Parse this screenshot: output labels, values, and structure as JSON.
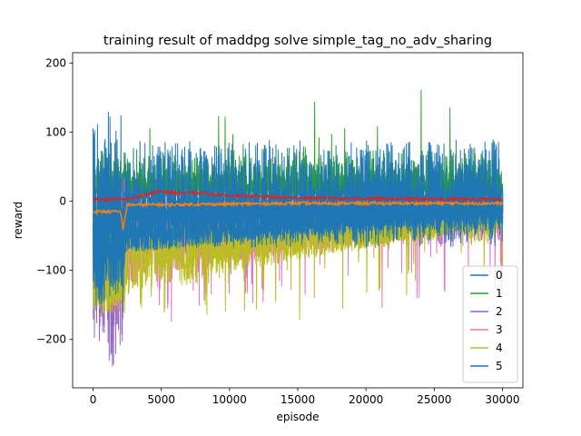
{
  "chart_data": {
    "type": "line",
    "title": "training result of maddpg solve simple_tag_no_adv_sharing",
    "xlabel": "episode",
    "ylabel": "reward",
    "xlim": [
      -1500,
      31500
    ],
    "ylim": [
      -270,
      215
    ],
    "xticks": [
      0,
      5000,
      10000,
      15000,
      20000,
      25000,
      30000
    ],
    "yticks": [
      -200,
      -100,
      0,
      100,
      200
    ],
    "grid": false,
    "legend_position": "bottom-right",
    "episodes_total": 30000,
    "series": [
      {
        "name": "0",
        "color": "#1f77b4",
        "band": {
          "low_early": -150,
          "low_late": -60,
          "high": 80,
          "mid_early": -30,
          "mid_late": -10
        }
      },
      {
        "name": "1",
        "color": "#2ca02c",
        "band": {
          "low": -5,
          "high": 185,
          "mid_early": 20,
          "mid_late": 15
        }
      },
      {
        "name": "2",
        "color": "#9467bd",
        "band": {
          "low_early": -245,
          "low_late": -60,
          "high": 5,
          "mid_early": -100,
          "mid_late": -20
        }
      },
      {
        "name": "3",
        "color": "#e377c2",
        "band": {
          "low_early": -175,
          "low_late": -180,
          "high": 5,
          "mid_early": -120,
          "mid_late": -25
        }
      },
      {
        "name": "4",
        "color": "#bcbd22",
        "band": {
          "low_early": -175,
          "low_late": -195,
          "high": 5,
          "mid_early": -140,
          "mid_late": -30
        }
      },
      {
        "name": "5",
        "color": "#1f77b4",
        "band": {
          "low_early": -165,
          "low_late": -70,
          "high": 20,
          "mid_early": -80,
          "mid_late": -15
        }
      }
    ],
    "mean_lines": [
      {
        "series": "red-mean",
        "color": "#d62728",
        "points": [
          [
            0,
            3
          ],
          [
            2000,
            3
          ],
          [
            3000,
            5
          ],
          [
            5000,
            15
          ],
          [
            6000,
            12
          ],
          [
            8000,
            12
          ],
          [
            10000,
            8
          ],
          [
            15000,
            5
          ],
          [
            20000,
            4
          ],
          [
            25000,
            3
          ],
          [
            30000,
            3
          ]
        ]
      },
      {
        "series": "orange-mean",
        "color": "#ff7f0e",
        "points": [
          [
            0,
            -15
          ],
          [
            2000,
            -15
          ],
          [
            2200,
            -40
          ],
          [
            2500,
            -5
          ],
          [
            5000,
            -5
          ],
          [
            10000,
            -4
          ],
          [
            15000,
            -3
          ],
          [
            20000,
            -3
          ],
          [
            25000,
            -3
          ],
          [
            30000,
            -3
          ]
        ]
      }
    ]
  }
}
